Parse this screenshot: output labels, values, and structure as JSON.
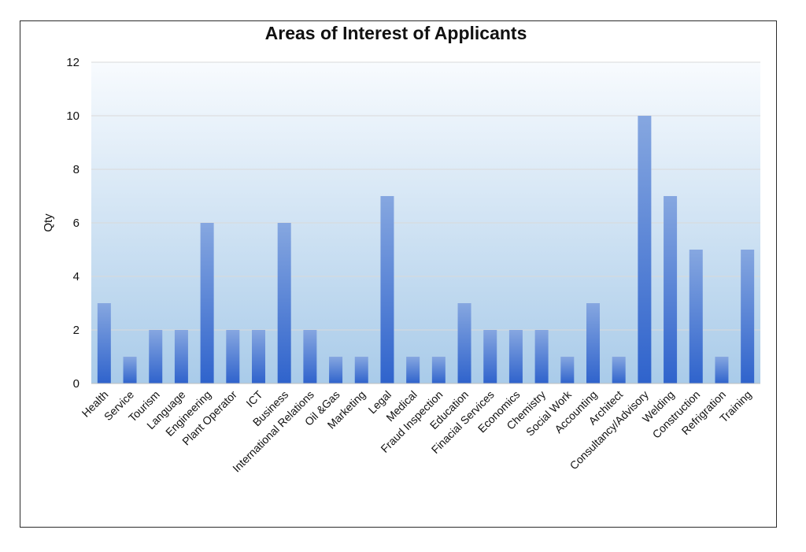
{
  "chart_data": {
    "type": "bar",
    "title": "Areas of Interest of Applicants",
    "xlabel": "",
    "ylabel": "Qty",
    "ylim": [
      0,
      12
    ],
    "yticks": [
      0,
      2,
      4,
      6,
      8,
      10,
      12
    ],
    "grid": true,
    "legend": "none",
    "categories": [
      "Health",
      "Service",
      "Tourism",
      "Language",
      "Engineering",
      "Plant Operator",
      "ICT",
      "Business",
      "International Relations",
      "Oil &Gas",
      "Marketing",
      "Legal",
      "Medical",
      "Fraud Inspection",
      "Education",
      "Finacial Services",
      "Economics",
      "Chemistry",
      "Social Work",
      "Accounting",
      "Architect",
      "Consultancy/Advisory",
      "Welding",
      "Construction",
      "Refrigration",
      "Training"
    ],
    "values": [
      3,
      1,
      2,
      2,
      6,
      2,
      2,
      6,
      2,
      1,
      1,
      7,
      1,
      1,
      3,
      2,
      2,
      2,
      1,
      3,
      1,
      10,
      7,
      5,
      1,
      5
    ],
    "colors": {
      "bar_top": "#86a7e0",
      "bar_bottom": "#2f63cc",
      "plot_bg_top": "#f8fbfe",
      "plot_bg_bottom": "#a9cbe9",
      "gridline": "#d9d9d9"
    }
  }
}
